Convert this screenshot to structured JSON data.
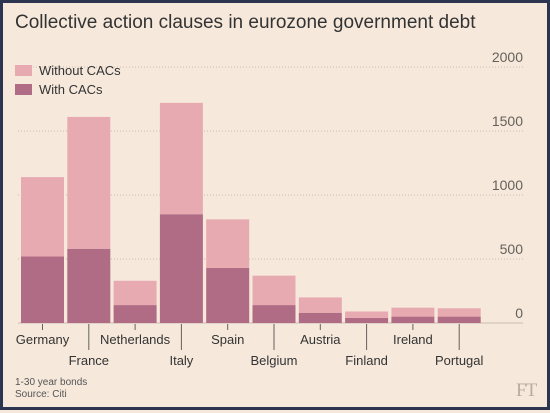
{
  "chart_data": {
    "type": "bar",
    "stacked": true,
    "title": "Collective action clauses in eurozone government debt",
    "categories": [
      "Germany",
      "France",
      "Netherlands",
      "Italy",
      "Spain",
      "Belgium",
      "Austria",
      "Finland",
      "Ireland",
      "Portugal"
    ],
    "series": [
      {
        "name": "With CACs",
        "color": "#b06b85",
        "values": [
          520,
          580,
          140,
          850,
          430,
          140,
          80,
          40,
          50,
          50
        ]
      },
      {
        "name": "Without CACs",
        "color": "#e8aab1",
        "values": [
          620,
          1030,
          190,
          870,
          380,
          230,
          120,
          50,
          70,
          65
        ]
      }
    ],
    "legend_order": [
      "Without CACs",
      "With CACs"
    ],
    "legend_position": "top-left",
    "yaxis_side": "right",
    "yticks": [
      "0",
      "500",
      "1000",
      "1500",
      "2000"
    ],
    "ylim": [
      0,
      2000
    ],
    "grid": true,
    "xlabel": "",
    "ylabel": ""
  },
  "footnote": {
    "line1": "1-30 year bonds",
    "line2": "Source: Citi"
  },
  "logo_text": "FT"
}
